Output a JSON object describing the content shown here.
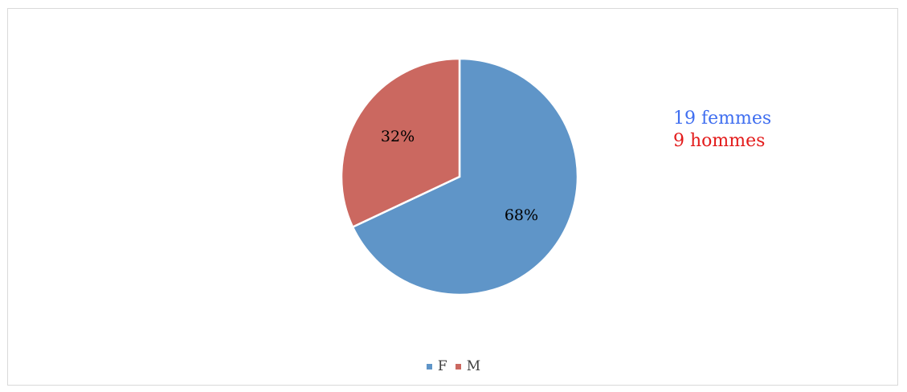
{
  "chart_data": {
    "type": "pie",
    "categories": [
      "F",
      "M"
    ],
    "values": [
      68,
      32
    ],
    "data_labels": [
      "68%",
      "32%"
    ],
    "colors": [
      "#5f95c8",
      "#cb6860"
    ],
    "legend": {
      "position": "bottom",
      "entries": [
        "F",
        "M"
      ]
    }
  },
  "annotations": {
    "women": {
      "text": "19 femmes",
      "color": "#3f6ef0"
    },
    "men": {
      "text": "9 hommes",
      "color": "#e31b1b"
    }
  }
}
